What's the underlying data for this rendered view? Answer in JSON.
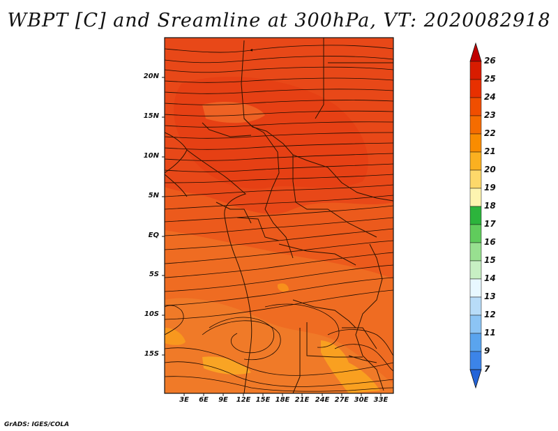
{
  "title": "WBPT [C] and Sreamline at 300hPa, VT: 2020082918",
  "credit": "GrADS: IGES/COLA",
  "map": {
    "lat_labels": [
      "20N",
      "15N",
      "10N",
      "5N",
      "EQ",
      "5S",
      "10S",
      "15S"
    ],
    "lon_labels": [
      "3E",
      "6E",
      "9E",
      "12E",
      "15E",
      "18E",
      "21E",
      "24E",
      "27E",
      "30E",
      "33E"
    ]
  },
  "colorbar": {
    "labels": [
      "26",
      "25",
      "24",
      "23",
      "22",
      "21",
      "20",
      "19",
      "18",
      "17",
      "16",
      "15",
      "14",
      "13",
      "12",
      "11",
      "9",
      "7"
    ],
    "colors": [
      "#c00000",
      "#d81c00",
      "#e83000",
      "#f04e00",
      "#f56c00",
      "#f98c00",
      "#fbb020",
      "#fdd86a",
      "#fdf4b0",
      "#2cb43c",
      "#60cc5c",
      "#98e090",
      "#c8f0c4",
      "#e8f8ff",
      "#b8dcf8",
      "#8cc4f4",
      "#5aa4ee",
      "#3c84e8",
      "#2464d8"
    ]
  },
  "colors": {
    "dominant_field": "#e8541a",
    "warm_field": "#f05a1a",
    "cool_field": "#f08030",
    "yellow_patch": "#f9a020",
    "boundary": "#2a1200",
    "streamline": "#1a0a00"
  }
}
